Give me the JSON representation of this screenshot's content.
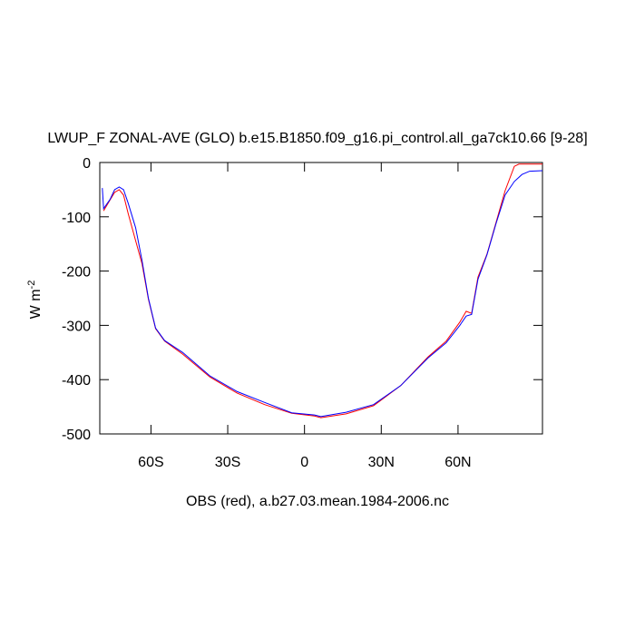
{
  "chart_data": {
    "type": "line",
    "title": "LWUP_F ZONAL-AVE (GLO) b.e15.B1850.f09_g16.pi_control.all_ga7ck10.66 [9-28]",
    "xlabel": "OBS (red), a.b27.03.mean.1984-2006.nc",
    "ylabel": {
      "base": "W m",
      "sup": "-2"
    },
    "xlim": [
      -80,
      93
    ],
    "xticks": [
      {
        "value": -60,
        "label": "60S"
      },
      {
        "value": -30,
        "label": "30S"
      },
      0,
      {
        "value": 30,
        "label": "30N"
      },
      {
        "value": 60,
        "label": "60N"
      }
    ],
    "ylim": [
      -500,
      0
    ],
    "yticks": [
      -500,
      -400,
      -300,
      -200,
      -100,
      0
    ],
    "series": [
      {
        "color": "#ff0000",
        "x": [
          -78.5,
          -76,
          -74.2,
          -72.4,
          -70.7,
          -68.9,
          -66,
          -63.5,
          -61,
          -58.2,
          -54.7,
          -47.6,
          -37,
          -26.3,
          -15.6,
          -5,
          3.9,
          6.4,
          16.3,
          27,
          37.6,
          48.3,
          55.4,
          60.7,
          63.2,
          65.3,
          67.8,
          71.3,
          74.9,
          78.4,
          82,
          83.8,
          93
        ],
        "values": [
          -89,
          -69,
          -55,
          -50,
          -60,
          -94,
          -144,
          -186,
          -252,
          -306,
          -329,
          -353,
          -395,
          -425,
          -446,
          -462,
          -467,
          -470,
          -463,
          -448,
          -411,
          -358,
          -329,
          -294,
          -274,
          -278,
          -211,
          -169,
          -110,
          -52,
          -7,
          -3,
          -3
        ]
      },
      {
        "color": "#0000ff",
        "x": [
          -79,
          -78.5,
          -76,
          -74.2,
          -72.4,
          -70.7,
          -68.9,
          -66,
          -63.5,
          -61,
          -58.2,
          -54.7,
          -47.6,
          -37,
          -26.3,
          -15.6,
          -5,
          3.9,
          6.4,
          16.3,
          27,
          37.6,
          48.3,
          55.4,
          60.7,
          63.2,
          65.3,
          67.8,
          71.3,
          74.9,
          78.4,
          82,
          85,
          88,
          93
        ],
        "values": [
          -47,
          -85,
          -68,
          -50,
          -45,
          -50,
          -75,
          -120,
          -180,
          -250,
          -305,
          -328,
          -350,
          -393,
          -422,
          -442,
          -461,
          -465,
          -468,
          -460,
          -446,
          -411,
          -360,
          -332,
          -300,
          -283,
          -280,
          -215,
          -170,
          -112,
          -60,
          -35,
          -22,
          -16,
          -15
        ]
      }
    ]
  }
}
